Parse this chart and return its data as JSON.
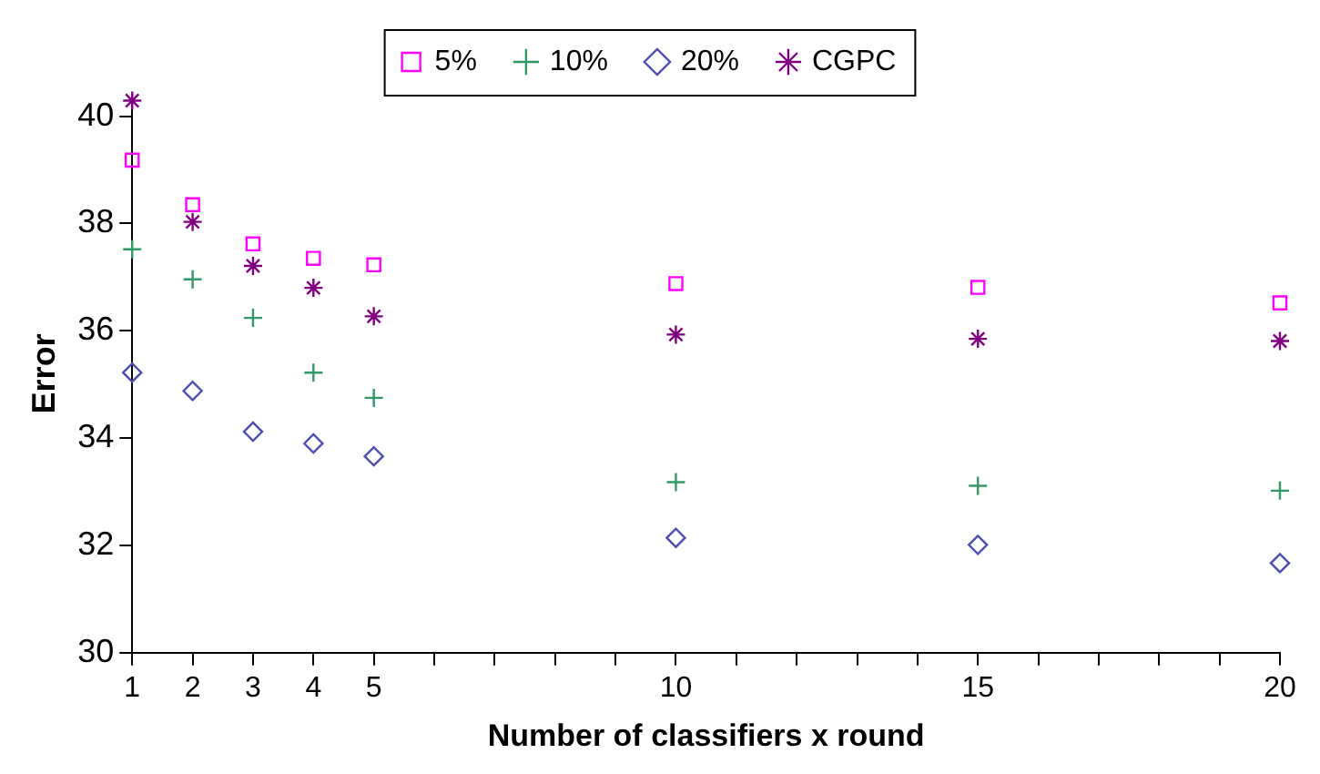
{
  "chart_data": {
    "type": "scatter",
    "xlabel": "Number of classifiers x round",
    "ylabel": "Error",
    "x": [
      1,
      2,
      3,
      4,
      5,
      10,
      15,
      20
    ],
    "series": [
      {
        "name": "5%",
        "color": "#ff00ff",
        "marker": "square",
        "values": [
          39.18,
          38.35,
          37.62,
          37.35,
          37.23,
          36.88,
          36.81,
          36.52
        ]
      },
      {
        "name": "10%",
        "color": "#339966",
        "marker": "cross",
        "values": [
          37.52,
          36.96,
          36.24,
          35.22,
          34.75,
          33.18,
          33.11,
          33.02
        ]
      },
      {
        "name": "20%",
        "color": "#4d4db3",
        "marker": "diamond",
        "values": [
          35.22,
          34.88,
          34.12,
          33.9,
          33.66,
          32.14,
          32.01,
          31.67
        ]
      },
      {
        "name": "CGPC",
        "color": "#800080",
        "marker": "cross",
        "values": [
          40.29,
          38.03,
          37.21,
          36.8,
          36.27,
          35.93,
          35.85,
          35.81
        ]
      }
    ],
    "xlim": [
      1,
      20
    ],
    "xticks": [
      1,
      2,
      3,
      4,
      5,
      {
        "value": 6,
        "label": null
      },
      {
        "value": 7,
        "label": null
      },
      {
        "value": 8,
        "label": null
      },
      {
        "value": 9,
        "label": null
      },
      10,
      {
        "value": 11,
        "label": null
      },
      {
        "value": 12,
        "label": null
      },
      {
        "value": 13,
        "label": null
      },
      {
        "value": 14,
        "label": null
      },
      15,
      {
        "value": 16,
        "label": null
      },
      {
        "value": 17,
        "label": null
      },
      {
        "value": 18,
        "label": null
      },
      {
        "value": 19,
        "label": null
      },
      20
    ],
    "ylim": [
      30,
      40.4
    ],
    "yticks": [
      30,
      32,
      34,
      36,
      38,
      40
    ],
    "grid": false,
    "legend": "top"
  }
}
